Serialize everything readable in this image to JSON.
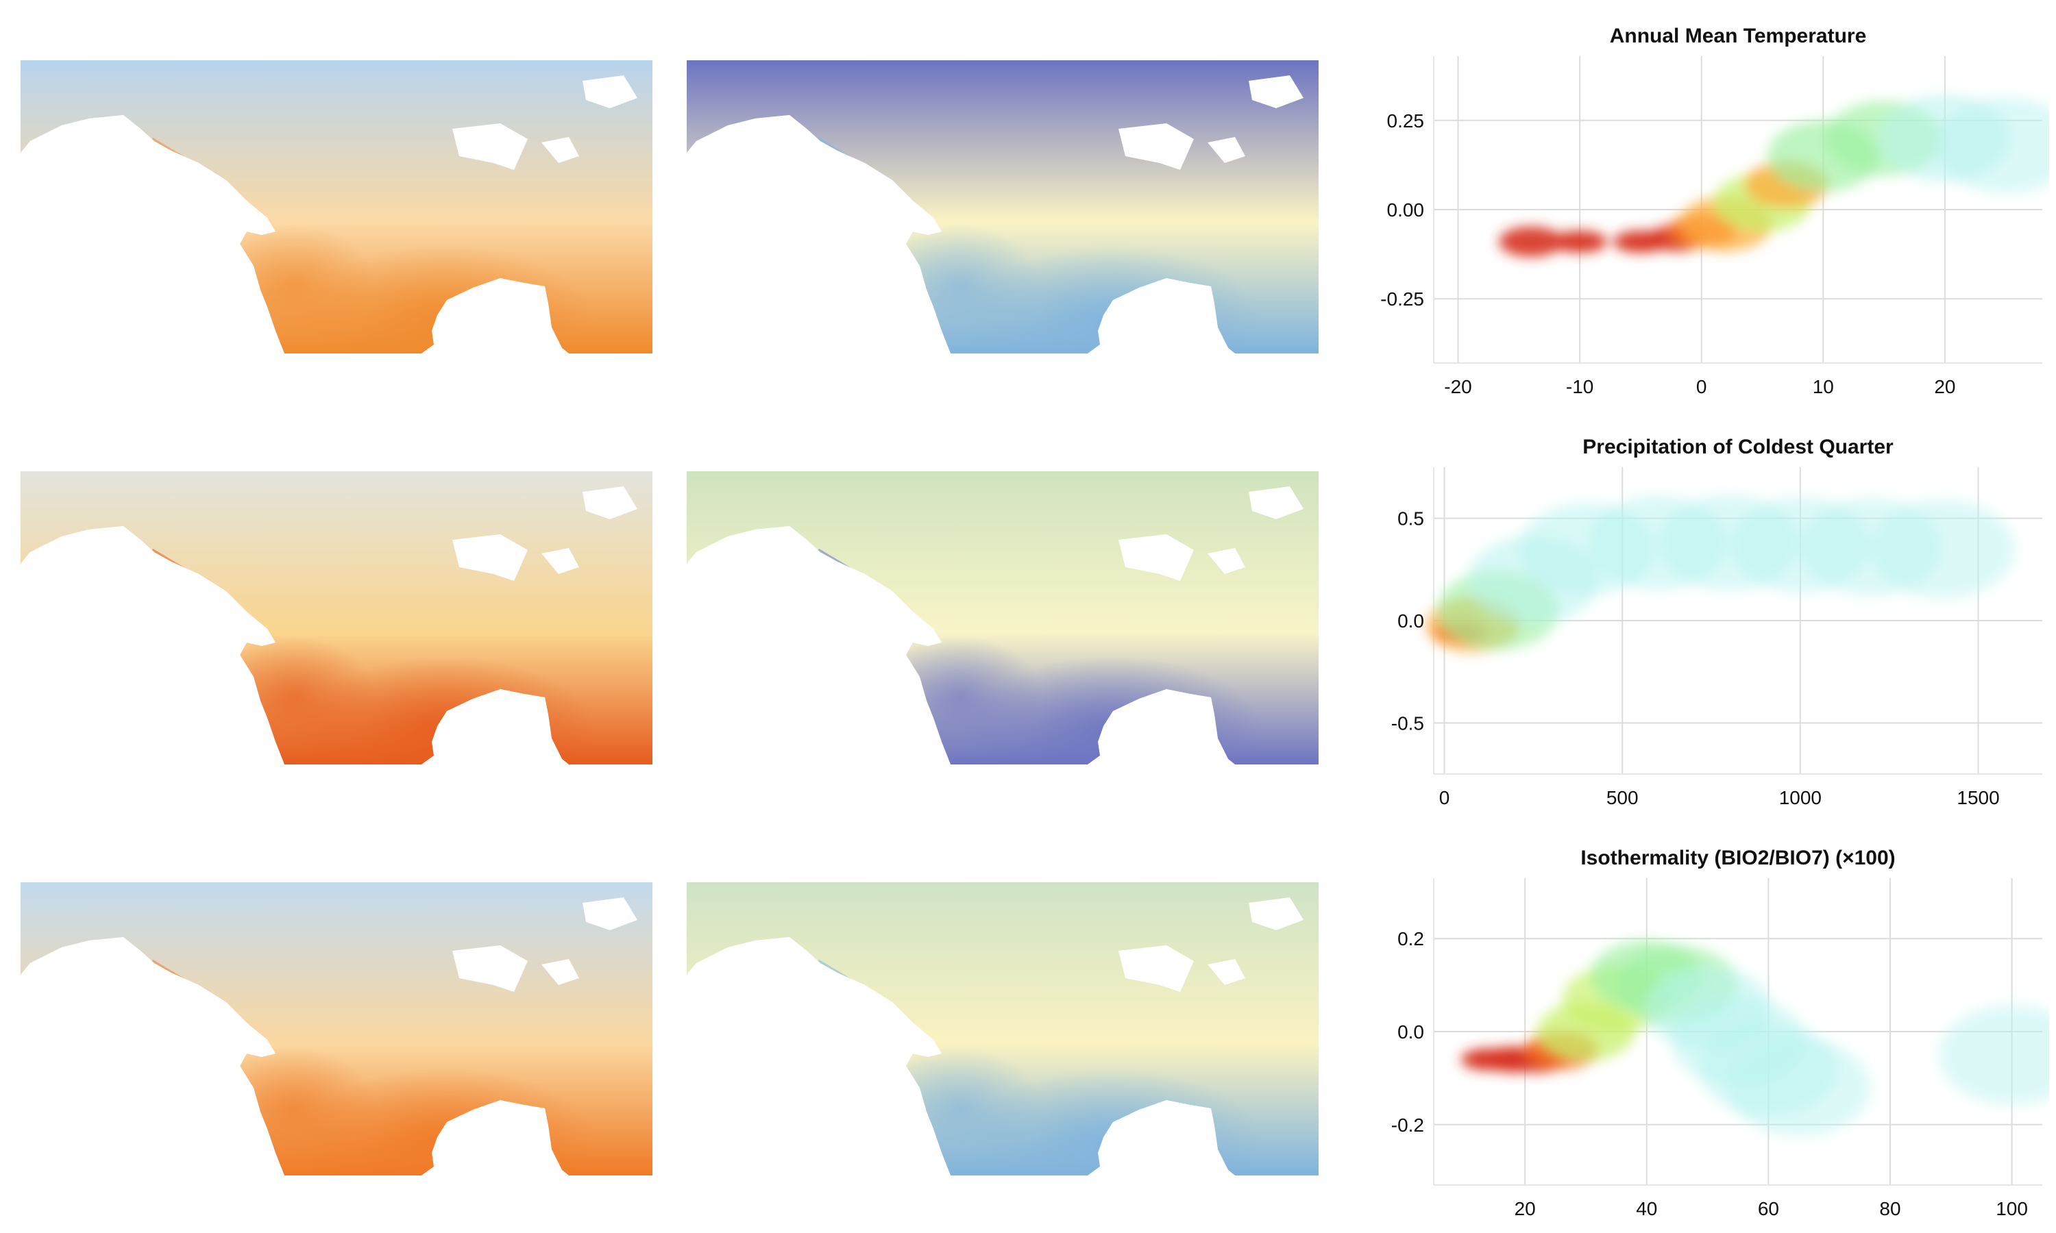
{
  "rows": [
    {
      "map_a_colors": [
        "#f08a2e",
        "#fbd9a6",
        "#b8d4ee"
      ],
      "map_b_colors": [
        "#7fb3dd",
        "#fbf3c4",
        "#6d74c2"
      ]
    },
    {
      "map_a_colors": [
        "#e65c1e",
        "#fad58f",
        "#e3e4de"
      ],
      "map_b_colors": [
        "#6d74c2",
        "#f9f4c8",
        "#cfe3bf"
      ]
    },
    {
      "map_a_colors": [
        "#ef7a26",
        "#fbd7a0",
        "#c3daef"
      ],
      "map_b_colors": [
        "#7fb3dd",
        "#fbf2c2",
        "#cfe3c6"
      ]
    }
  ],
  "chart_data": [
    {
      "type": "heatmap",
      "title": "Annual Mean Temperature",
      "xlabel": "",
      "ylabel": "",
      "xlim": [
        -22,
        28
      ],
      "ylim": [
        -0.43,
        0.43
      ],
      "x_ticks": [
        -20,
        -10,
        0,
        10,
        20
      ],
      "y_ticks": [
        0.25,
        0.0,
        -0.25
      ],
      "x_tick_labels": [
        "-20",
        "-10",
        "0",
        "10",
        "20"
      ],
      "y_tick_labels": [
        "0.25",
        "0.00",
        "-0.25"
      ],
      "grid": true,
      "density_x": [
        -14,
        -10,
        -5,
        -2,
        0,
        2,
        5,
        7,
        10,
        15,
        20,
        25
      ],
      "density_y": [
        -0.09,
        -0.09,
        -0.09,
        -0.08,
        -0.06,
        -0.04,
        0.02,
        0.07,
        0.15,
        0.2,
        0.2,
        0.18
      ],
      "density_level": [
        0.9,
        1.0,
        1.0,
        0.95,
        0.85,
        0.6,
        0.55,
        0.7,
        0.4,
        0.35,
        0.2,
        0.1
      ]
    },
    {
      "type": "heatmap",
      "title": "Precipitation of Coldest Quarter",
      "xlabel": "",
      "ylabel": "",
      "xlim": [
        -30,
        1680
      ],
      "ylim": [
        -0.75,
        0.75
      ],
      "x_ticks": [
        0,
        500,
        1000,
        1500
      ],
      "y_ticks": [
        0.5,
        0.0,
        -0.5
      ],
      "x_tick_labels": [
        "0",
        "500",
        "1000",
        "1500"
      ],
      "y_tick_labels": [
        "0.5",
        "0.0",
        "-0.5"
      ],
      "grid": true,
      "density_x": [
        40,
        80,
        150,
        250,
        400,
        600,
        800,
        1000,
        1200,
        1400
      ],
      "density_y": [
        -0.06,
        -0.02,
        0.05,
        0.2,
        0.35,
        0.38,
        0.38,
        0.37,
        0.36,
        0.35
      ],
      "density_level": [
        1.0,
        0.6,
        0.3,
        0.2,
        0.15,
        0.12,
        0.1,
        0.1,
        0.08,
        0.06
      ]
    },
    {
      "type": "heatmap",
      "title": "Isothermality (BIO2/BIO7) (×100)",
      "xlabel": "",
      "ylabel": "",
      "xlim": [
        5,
        105
      ],
      "ylim": [
        -0.33,
        0.33
      ],
      "x_ticks": [
        20,
        40,
        60,
        80,
        100
      ],
      "y_ticks": [
        0.2,
        0.0,
        -0.2
      ],
      "x_tick_labels": [
        "20",
        "40",
        "60",
        "80",
        "100"
      ],
      "y_tick_labels": [
        "0.2",
        "0.0",
        "-0.2"
      ],
      "grid": true,
      "density_x": [
        14,
        18,
        22,
        26,
        30,
        35,
        40,
        45,
        50,
        55,
        60,
        65,
        100
      ],
      "density_y": [
        -0.06,
        -0.06,
        -0.06,
        -0.04,
        0.0,
        0.07,
        0.12,
        0.1,
        0.05,
        -0.02,
        -0.08,
        -0.12,
        -0.05
      ],
      "density_level": [
        1.0,
        0.95,
        0.95,
        0.8,
        0.55,
        0.45,
        0.4,
        0.3,
        0.25,
        0.18,
        0.12,
        0.08,
        0.05
      ]
    }
  ]
}
